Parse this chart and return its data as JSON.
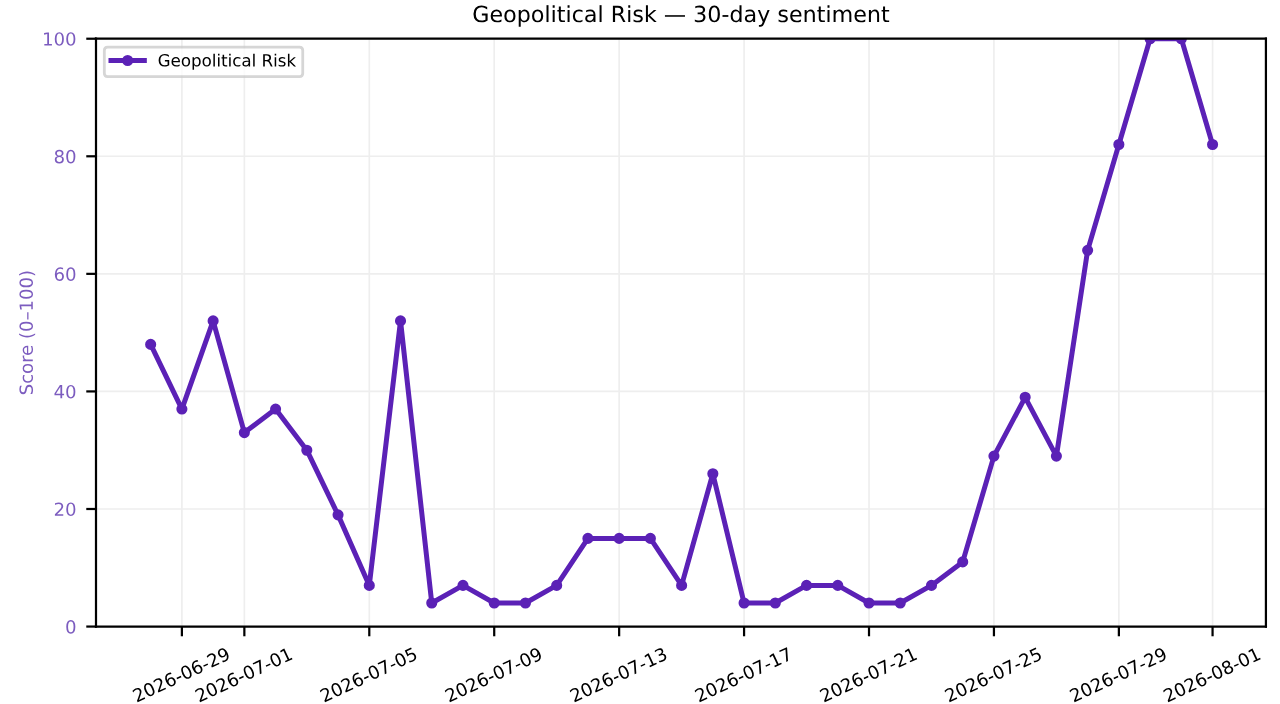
{
  "chart_data": {
    "type": "line",
    "title": "Geopolitical Risk — 30-day sentiment",
    "ylabel": "Score (0–100)",
    "x": [
      "2026-06-28",
      "2026-06-29",
      "2026-06-30",
      "2026-07-01",
      "2026-07-02",
      "2026-07-03",
      "2026-07-04",
      "2026-07-05",
      "2026-07-06",
      "2026-07-07",
      "2026-07-08",
      "2026-07-09",
      "2026-07-10",
      "2026-07-11",
      "2026-07-12",
      "2026-07-13",
      "2026-07-14",
      "2026-07-15",
      "2026-07-16",
      "2026-07-17",
      "2026-07-18",
      "2026-07-19",
      "2026-07-20",
      "2026-07-21",
      "2026-07-22",
      "2026-07-23",
      "2026-07-24",
      "2026-07-25",
      "2026-07-26",
      "2026-07-27",
      "2026-07-28",
      "2026-07-29",
      "2026-07-30",
      "2026-07-31",
      "2026-08-01"
    ],
    "series": [
      {
        "name": "Geopolitical Risk",
        "color": "#5b21b6",
        "values": [
          48,
          37,
          52,
          33,
          37,
          30,
          19,
          7,
          52,
          4,
          7,
          4,
          4,
          7,
          15,
          15,
          15,
          7,
          26,
          4,
          4,
          7,
          7,
          4,
          4,
          7,
          11,
          29,
          39,
          29,
          64,
          82,
          100,
          100,
          82
        ]
      }
    ],
    "xlim": [
      "2026-06-26T06:00",
      "2026-08-02T17:00"
    ],
    "xticks": [
      "2026-06-29",
      "2026-07-01",
      "2026-07-05",
      "2026-07-09",
      "2026-07-13",
      "2026-07-17",
      "2026-07-21",
      "2026-07-25",
      "2026-07-29",
      "2026-08-01"
    ],
    "ylim": [
      0,
      100
    ],
    "yticks": [
      0,
      20,
      40,
      60,
      80,
      100
    ],
    "grid": true,
    "legend": "top left",
    "marker": "circle",
    "line_style": "solid"
  }
}
